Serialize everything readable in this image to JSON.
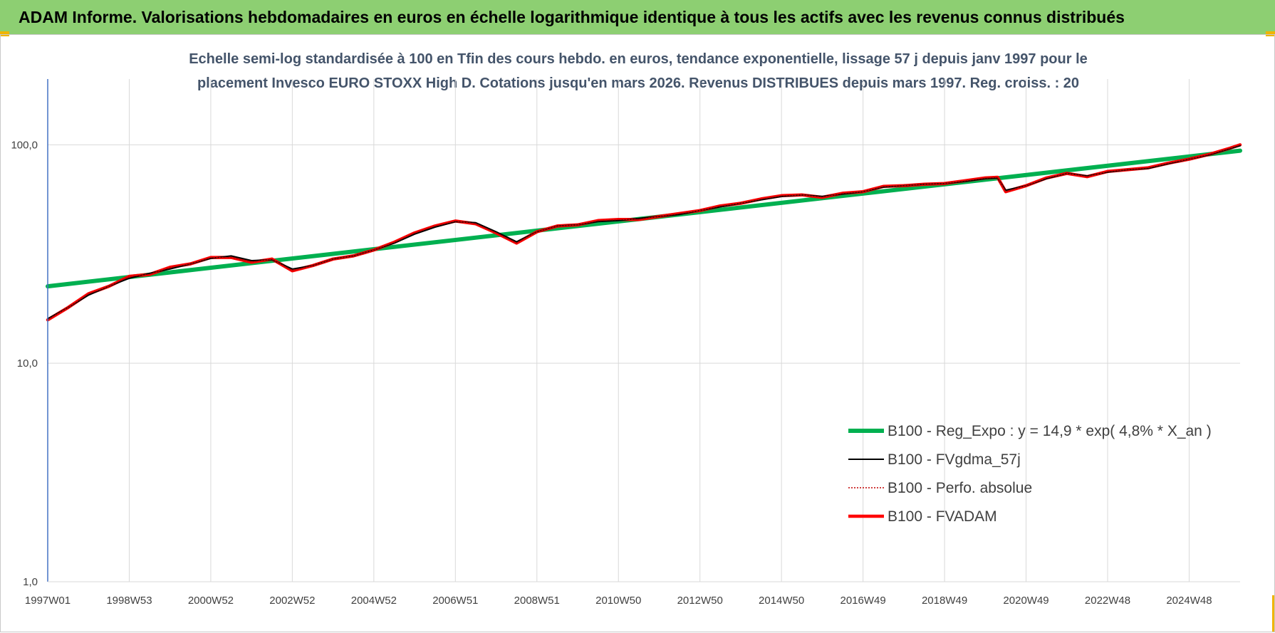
{
  "header": {
    "title": "ADAM Informe. Valorisations hebdomadaires en euros en échelle logarithmique identique à tous les actifs avec les revenus connus distribués"
  },
  "colors": {
    "header_bg": "#8dcf72",
    "reg_expo": "#00b050",
    "fvgdma": "#000000",
    "perfo": "#c00000",
    "fvadam": "#ff0000",
    "grid": "#d9d9d9",
    "axis": "#4472c4"
  },
  "chart_data": {
    "type": "line",
    "title_lines": [
      "Echelle semi-log standardisée à 100 en Tfin des cours hebdo. en euros, tendance exponentielle, lissage 57 j depuis janv 1997 pour le",
      "placement Invesco EURO STOXX High D. Cotations jusqu'en mars 2026. Revenus DISTRIBUES depuis mars 1997. Reg. croiss. : 20"
    ],
    "y_scale": "log",
    "ylim": [
      1,
      200
    ],
    "xlim": [
      1997.0,
      2026.25
    ],
    "y_ticks": [
      {
        "value": 1,
        "label": "1,0"
      },
      {
        "value": 10,
        "label": "10,0"
      },
      {
        "value": 100,
        "label": "100,0"
      }
    ],
    "x_ticks": [
      {
        "year": 1997.0,
        "label": "1997W01"
      },
      {
        "year": 1999.0,
        "label": "1998W53"
      },
      {
        "year": 2001.0,
        "label": "2000W52"
      },
      {
        "year": 2003.0,
        "label": "2002W52"
      },
      {
        "year": 2005.0,
        "label": "2004W52"
      },
      {
        "year": 2007.0,
        "label": "2006W51"
      },
      {
        "year": 2009.0,
        "label": "2008W51"
      },
      {
        "year": 2011.0,
        "label": "2010W50"
      },
      {
        "year": 2013.0,
        "label": "2012W50"
      },
      {
        "year": 2015.0,
        "label": "2014W50"
      },
      {
        "year": 2017.0,
        "label": "2016W49"
      },
      {
        "year": 2019.0,
        "label": "2018W49"
      },
      {
        "year": 2021.0,
        "label": "2020W49"
      },
      {
        "year": 2023.0,
        "label": "2022W48"
      },
      {
        "year": 2025.0,
        "label": "2024W48"
      }
    ],
    "grid": true,
    "legend_position": "right",
    "series": [
      {
        "name": "B100 - Reg_Expo : y = 14,9 * exp( 4,8% *  X_an )",
        "key": "reg_expo",
        "x": [
          1997.0,
          2026.25
        ],
        "y": [
          22.5,
          94
        ]
      },
      {
        "name": "B100 - FVgdma_57j",
        "key": "fvgdma",
        "x": [
          1997.0,
          1997.5,
          1998.0,
          1998.5,
          1999.0,
          1999.5,
          2000.0,
          2000.5,
          2001.0,
          2001.5,
          2002.0,
          2002.5,
          2003.0,
          2003.5,
          2004.0,
          2004.5,
          2005.0,
          2005.5,
          2006.0,
          2006.5,
          2007.0,
          2007.5,
          2008.0,
          2008.5,
          2009.0,
          2009.5,
          2010.0,
          2010.5,
          2011.0,
          2011.5,
          2012.0,
          2012.5,
          2013.0,
          2013.5,
          2014.0,
          2014.5,
          2015.0,
          2015.5,
          2016.0,
          2016.5,
          2017.0,
          2017.5,
          2018.0,
          2018.5,
          2019.0,
          2019.5,
          2020.0,
          2020.3,
          2020.5,
          2021.0,
          2021.5,
          2022.0,
          2022.5,
          2023.0,
          2023.5,
          2024.0,
          2024.5,
          2025.0,
          2025.5,
          2026.0,
          2026.25
        ],
        "y": [
          16.0,
          18.0,
          20.5,
          22.5,
          24.5,
          25.8,
          27.0,
          28.5,
          30.2,
          31.0,
          29.5,
          29.8,
          27.0,
          28.0,
          30.0,
          31.0,
          33.0,
          35.5,
          39.0,
          42.0,
          44.5,
          44.0,
          40.0,
          36.0,
          40.0,
          42.5,
          43.0,
          44.5,
          45.0,
          46.0,
          47.0,
          48.0,
          50.0,
          52.0,
          54.0,
          56.0,
          58.0,
          59.0,
          58.0,
          59.5,
          61.0,
          64.0,
          65.0,
          66.0,
          66.5,
          68.0,
          70.0,
          70.5,
          62.0,
          65.0,
          70.0,
          74.0,
          72.0,
          75.0,
          77.0,
          78.0,
          82.0,
          86.0,
          90.0,
          96.0,
          99.0
        ]
      },
      {
        "name": "B100 - Perfo. absolue",
        "key": "perfo",
        "x": [
          1997.0,
          1997.5,
          1998.0,
          1998.5,
          1999.0,
          1999.5,
          2000.0,
          2000.5,
          2001.0,
          2001.5,
          2002.0,
          2002.5,
          2003.0,
          2003.5,
          2004.0,
          2004.5,
          2005.0,
          2005.5,
          2006.0,
          2006.5,
          2007.0,
          2007.5,
          2008.0,
          2008.5,
          2009.0,
          2009.5,
          2010.0,
          2010.5,
          2011.0,
          2011.5,
          2012.0,
          2012.5,
          2013.0,
          2013.5,
          2014.0,
          2014.5,
          2015.0,
          2015.5,
          2016.0,
          2016.5,
          2017.0,
          2017.5,
          2018.0,
          2018.5,
          2019.0,
          2019.5,
          2020.0,
          2020.3,
          2020.5,
          2021.0,
          2021.5,
          2022.0,
          2022.5,
          2023.0,
          2023.5,
          2024.0,
          2024.5,
          2025.0,
          2025.5,
          2026.0,
          2026.25
        ],
        "y": [
          15.8,
          18.0,
          20.8,
          22.5,
          25.0,
          25.5,
          27.5,
          28.5,
          30.5,
          30.5,
          29.0,
          30.0,
          26.5,
          28.0,
          30.0,
          31.0,
          33.0,
          35.8,
          39.5,
          42.5,
          44.8,
          43.5,
          39.5,
          35.5,
          40.0,
          42.5,
          43.0,
          45.0,
          45.5,
          45.5,
          47.0,
          48.5,
          50.0,
          52.5,
          54.0,
          56.5,
          58.5,
          59.0,
          57.5,
          60.0,
          61.0,
          64.5,
          65.0,
          66.0,
          66.5,
          68.5,
          70.5,
          71.0,
          61.0,
          65.0,
          70.5,
          74.0,
          71.5,
          75.5,
          77.0,
          78.5,
          82.5,
          86.0,
          90.5,
          96.5,
          100.0
        ]
      },
      {
        "name": "B100 - FVADAM",
        "key": "fvadam",
        "x": [
          1997.0,
          1997.5,
          1998.0,
          1998.5,
          1999.0,
          1999.5,
          2000.0,
          2000.5,
          2001.0,
          2001.5,
          2002.0,
          2002.5,
          2003.0,
          2003.5,
          2004.0,
          2004.5,
          2005.0,
          2005.5,
          2006.0,
          2006.5,
          2007.0,
          2007.5,
          2008.0,
          2008.5,
          2009.0,
          2009.5,
          2010.0,
          2010.5,
          2011.0,
          2011.5,
          2012.0,
          2012.5,
          2013.0,
          2013.5,
          2014.0,
          2014.5,
          2015.0,
          2015.5,
          2016.0,
          2016.5,
          2017.0,
          2017.5,
          2018.0,
          2018.5,
          2019.0,
          2019.5,
          2020.0,
          2020.3,
          2020.5,
          2021.0,
          2021.5,
          2022.0,
          2022.5,
          2023.0,
          2023.5,
          2024.0,
          2024.5,
          2025.0,
          2025.5,
          2026.0,
          2026.25
        ],
        "y": [
          15.8,
          18.0,
          20.8,
          22.5,
          25.0,
          25.5,
          27.5,
          28.5,
          30.5,
          30.5,
          29.0,
          30.0,
          26.5,
          28.0,
          30.0,
          31.0,
          33.0,
          35.8,
          39.5,
          42.5,
          44.8,
          43.5,
          39.5,
          35.5,
          40.0,
          42.5,
          43.0,
          45.0,
          45.5,
          45.5,
          47.0,
          48.5,
          50.0,
          52.5,
          54.0,
          56.5,
          58.5,
          59.0,
          57.5,
          60.0,
          61.0,
          64.5,
          65.0,
          66.0,
          66.5,
          68.5,
          70.5,
          71.0,
          61.0,
          65.0,
          70.5,
          74.0,
          71.5,
          75.5,
          77.0,
          78.5,
          82.5,
          86.0,
          90.5,
          96.5,
          100.0
        ]
      }
    ]
  }
}
